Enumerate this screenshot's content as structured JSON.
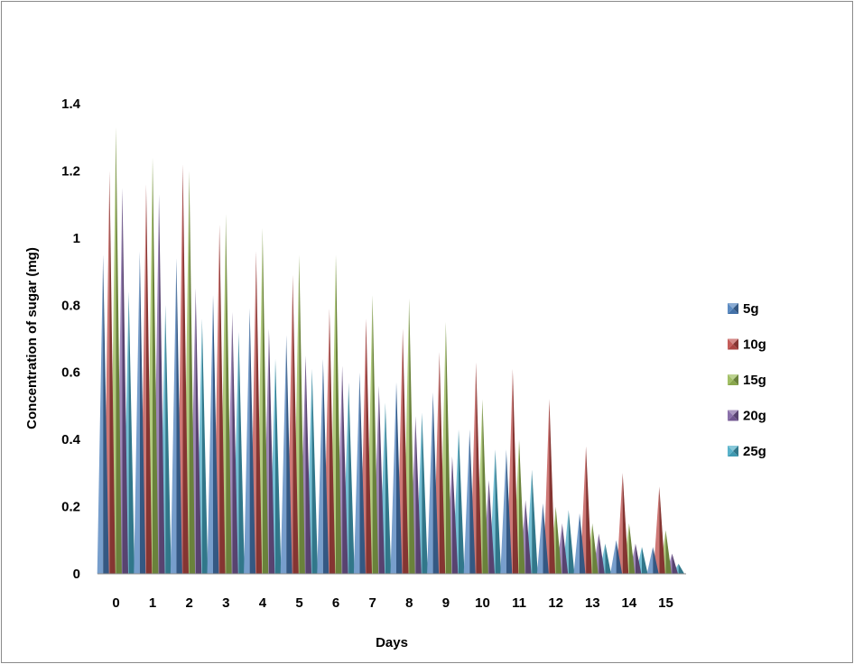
{
  "chart_data": {
    "type": "bar",
    "style": "3d-pyramid",
    "title": "",
    "xlabel": "Days",
    "ylabel": "Concentration of sugar (mg)",
    "ylim": [
      0,
      1.4
    ],
    "yticks": [
      "0",
      "0.2",
      "0.4",
      "0.6",
      "0.8",
      "1",
      "1.2",
      "1.4"
    ],
    "categories": [
      "0",
      "1",
      "2",
      "3",
      "4",
      "5",
      "6",
      "7",
      "8",
      "9",
      "10",
      "11",
      "12",
      "13",
      "14",
      "15"
    ],
    "legend_position": "right",
    "grid": false,
    "series": [
      {
        "name": "5g",
        "color": "#4a7ebb",
        "values": [
          0.95,
          0.96,
          0.94,
          0.83,
          0.79,
          0.71,
          0.64,
          0.6,
          0.57,
          0.54,
          0.43,
          0.37,
          0.21,
          0.18,
          0.1,
          0.08
        ]
      },
      {
        "name": "10g",
        "color": "#be4b48",
        "values": [
          1.2,
          1.16,
          1.22,
          1.04,
          0.96,
          0.89,
          0.79,
          0.76,
          0.73,
          0.66,
          0.63,
          0.61,
          0.52,
          0.38,
          0.3,
          0.26
        ]
      },
      {
        "name": "15g",
        "color": "#98b954",
        "values": [
          1.33,
          1.24,
          1.2,
          1.07,
          1.03,
          0.95,
          0.95,
          0.83,
          0.82,
          0.75,
          0.52,
          0.4,
          0.2,
          0.15,
          0.15,
          0.13
        ]
      },
      {
        "name": "20g",
        "color": "#7d60a0",
        "values": [
          1.15,
          1.13,
          0.85,
          0.78,
          0.73,
          0.65,
          0.62,
          0.56,
          0.47,
          0.35,
          0.28,
          0.22,
          0.15,
          0.12,
          0.09,
          0.06
        ]
      },
      {
        "name": "25g",
        "color": "#46aac5",
        "values": [
          0.84,
          0.8,
          0.76,
          0.72,
          0.64,
          0.61,
          0.57,
          0.51,
          0.48,
          0.43,
          0.37,
          0.31,
          0.19,
          0.09,
          0.08,
          0.03
        ]
      }
    ]
  }
}
